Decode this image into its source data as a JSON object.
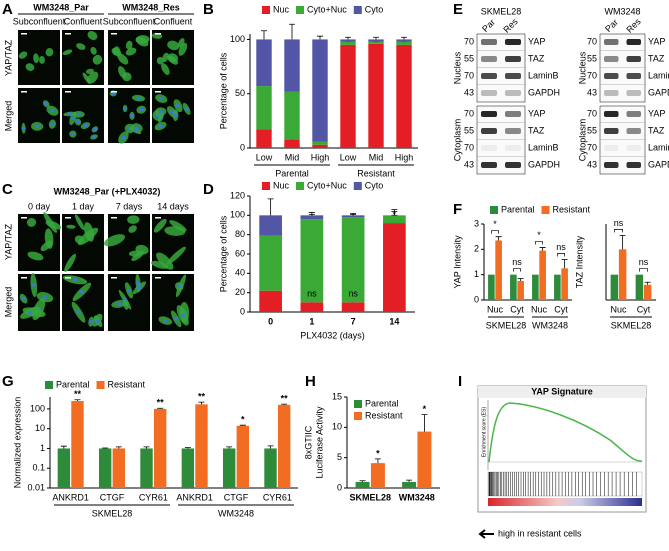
{
  "panel_a": {
    "letter": "A",
    "columns": [
      {
        "title": "WM3248_Par",
        "subtitles": [
          "Subconfluent",
          "Confluent"
        ]
      },
      {
        "title": "WM3248_Res",
        "subtitles": [
          "Subconfluent",
          "Confluent"
        ]
      }
    ],
    "rows": [
      "YAP/TAZ",
      "Merged"
    ]
  },
  "panel_c": {
    "letter": "C",
    "title": "WM3248_Par (+PLX4032)",
    "columns": [
      "0 day",
      "1 day",
      "7 days",
      "14 days"
    ],
    "rows": [
      "YAP/TAZ",
      "Merged"
    ]
  },
  "panel_e": {
    "letter": "E",
    "blots": [
      {
        "title": "SKMEL28",
        "lanes": [
          "Par",
          "Res"
        ],
        "fractions": [
          {
            "name": "Nucleus",
            "rows": [
              {
                "marker": 70,
                "protein": "YAP"
              },
              {
                "marker": 55,
                "protein": "TAZ"
              },
              {
                "marker": 70,
                "protein": "LaminB"
              },
              {
                "marker": 43,
                "protein": "GAPDH"
              }
            ]
          },
          {
            "name": "Cytoplasm",
            "rows": [
              {
                "marker": 70,
                "protein": "YAP"
              },
              {
                "marker": 55,
                "protein": "TAZ"
              },
              {
                "marker": 70,
                "protein": "LaminB"
              },
              {
                "marker": 43,
                "protein": "GAPDH"
              }
            ]
          }
        ]
      },
      {
        "title": "WM3248",
        "lanes": [
          "Par",
          "Res"
        ],
        "fractions": [
          {
            "name": "Nucleus",
            "rows": [
              {
                "marker": 70,
                "protein": "YAP"
              },
              {
                "marker": 55,
                "protein": "TAZ"
              },
              {
                "marker": 70,
                "protein": "LaminB"
              },
              {
                "marker": 43,
                "protein": "GAPDH"
              }
            ]
          },
          {
            "name": "Cytoplasm",
            "rows": [
              {
                "marker": 70,
                "protein": "YAP"
              },
              {
                "marker": 55,
                "protein": "TAZ"
              },
              {
                "marker": 70,
                "protein": "LaminB"
              },
              {
                "marker": 43,
                "protein": "GAPDH"
              }
            ]
          }
        ]
      }
    ]
  },
  "panel_i": {
    "letter": "I",
    "title": "YAP Signature",
    "ylabel": "Enrichment score (ES)",
    "caption": "high in resistant cells"
  },
  "chart_data": [
    {
      "letter": "B",
      "type": "stacked_bar",
      "ylabel": "Percentage of cells",
      "categories": [
        "Low",
        "Mid",
        "High",
        "Low",
        "Mid",
        "High"
      ],
      "groups": [
        "Parental",
        "Resistant"
      ],
      "series": [
        {
          "name": "Nuc",
          "color": "#e31e24",
          "values": [
            17,
            8,
            3,
            95,
            96,
            95
          ],
          "errors": [
            6,
            5,
            2,
            3,
            2,
            3
          ]
        },
        {
          "name": "Cyto+Nuc",
          "color": "#3aa935",
          "values": [
            40,
            44,
            3,
            3,
            2,
            3
          ]
        },
        {
          "name": "Cyto",
          "color": "#5355a6",
          "values": [
            43,
            48,
            94,
            2,
            2,
            2
          ],
          "errors": [
            8,
            14,
            3,
            2,
            2,
            2
          ]
        }
      ],
      "ylim": [
        0,
        105
      ],
      "yticks": [
        0,
        50,
        100
      ],
      "legend": "top"
    },
    {
      "letter": "D",
      "type": "stacked_bar",
      "ylabel": "Percentage of cells",
      "xlabel": "PLX4032 (days)",
      "categories": [
        "0",
        "1",
        "7",
        "14"
      ],
      "series": [
        {
          "name": "Nuc",
          "color": "#e31e24",
          "values": [
            22,
            10,
            10,
            92
          ],
          "errors": [
            8,
            8,
            3,
            8
          ]
        },
        {
          "name": "Cyto+Nuc",
          "color": "#3aa935",
          "values": [
            57,
            86,
            88,
            8
          ],
          "errors": [
            8,
            5,
            3,
            4
          ]
        },
        {
          "name": "Cyto",
          "color": "#5355a6",
          "values": [
            21,
            4,
            2,
            0
          ],
          "errors": [
            17,
            3,
            2,
            6
          ]
        }
      ],
      "annotations": [
        null,
        "ns",
        "ns",
        "*"
      ],
      "ylim": [
        0,
        120
      ],
      "yticks": [
        0,
        20,
        40,
        60,
        80,
        100,
        120
      ],
      "legend": "top"
    },
    {
      "letter": "F",
      "type": "grouped_bar",
      "ylabel": "YAP Intensity",
      "categories": [
        "Nuc",
        "Cyt",
        "Nuc",
        "Cyt"
      ],
      "groups": [
        "SKMEL28",
        "WM3248"
      ],
      "series": [
        {
          "name": "Parental",
          "color": "#2e8b3a",
          "values": [
            1,
            1,
            1,
            1
          ]
        },
        {
          "name": "Resistant",
          "color": "#f26c21",
          "values": [
            2.35,
            0.75,
            1.95,
            1.25
          ],
          "errors": [
            0.15,
            0.1,
            0.12,
            0.35
          ]
        }
      ],
      "significance": [
        "*",
        "ns",
        "*",
        "ns"
      ],
      "significance_style": "bracket",
      "ylim": [
        0,
        3
      ],
      "yticks": [
        0,
        1,
        2,
        3
      ],
      "legend": "top"
    },
    {
      "type": "grouped_bar",
      "ylabel": "TAZ Intensity",
      "categories": [
        "Nuc",
        "Cyt"
      ],
      "groups": [
        "SKMEL28"
      ],
      "series": [
        {
          "color": "#2e8b3a",
          "values": [
            1,
            1
          ]
        },
        {
          "color": "#f26c21",
          "values": [
            2.0,
            0.6
          ],
          "errors": [
            0.55,
            0.1
          ]
        }
      ],
      "significance": [
        "ns",
        "ns"
      ],
      "significance_style": "bracket",
      "ylim": [
        0,
        3
      ]
    },
    {
      "letter": "G",
      "type": "grouped_bar",
      "log": true,
      "ylabel": "Normalized expression",
      "categories": [
        "ANKRD1",
        "CTGF",
        "CYR61",
        "ANKRD1",
        "CTGF",
        "CYR61"
      ],
      "groups": [
        "SKMEL28",
        "WM3248"
      ],
      "series": [
        {
          "name": "Parental",
          "color": "#2e8b3a",
          "values": [
            1,
            1,
            1,
            1,
            1,
            1
          ],
          "errors": [
            0.3,
            0.05,
            0.2,
            0.1,
            0.2,
            0.35
          ]
        },
        {
          "name": "Resistant",
          "color": "#f26c21",
          "values": [
            250,
            1,
            100,
            170,
            14,
            160
          ],
          "errors": [
            40,
            0.2,
            8,
            50,
            1,
            15
          ]
        }
      ],
      "significance": [
        "**",
        null,
        "**",
        "**",
        "*",
        "**"
      ],
      "significance_style": "above",
      "ylim": [
        0.01,
        400
      ],
      "yticks": [
        0.01,
        0.1,
        1,
        10,
        100
      ],
      "legend": "top"
    },
    {
      "letter": "H",
      "type": "grouped_bar",
      "ylabel": [
        "8xGTIIC",
        "Luciferase Activity"
      ],
      "categories": [
        "SKMEL28",
        "WM3248"
      ],
      "series": [
        {
          "name": "Parental",
          "color": "#2e8b3a",
          "values": [
            1,
            1
          ],
          "errors": [
            0.2,
            0.3
          ]
        },
        {
          "name": "Resistant",
          "color": "#f26c21",
          "values": [
            4.1,
            9.3
          ],
          "errors": [
            0.7,
            2.8
          ]
        }
      ],
      "significance": [
        "*",
        "*"
      ],
      "significance_style": "above",
      "ylim": [
        0,
        15
      ],
      "yticks": [
        0,
        5,
        10,
        15
      ],
      "legend": "upper left"
    }
  ]
}
